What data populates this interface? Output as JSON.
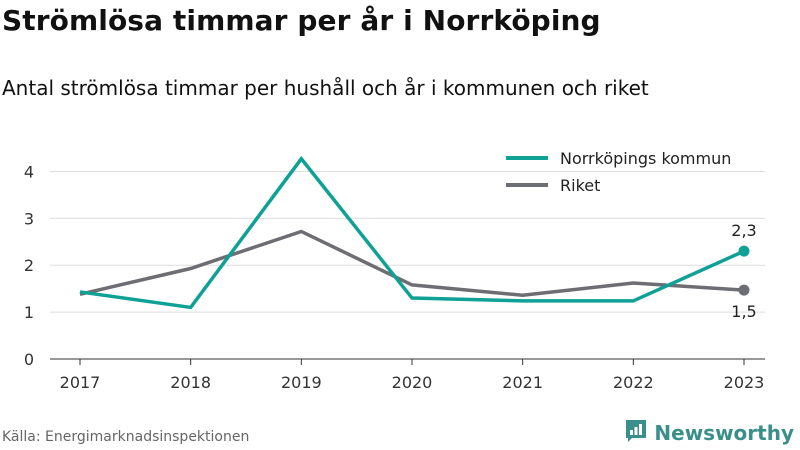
{
  "header": {
    "title": "Strömlösa timmar per år i Norrköping",
    "subtitle": "Antal strömlösa timmar per hushåll och år i kommunen och riket"
  },
  "footer": {
    "source": "Källa: Energimarknadsinspektionen",
    "brand": "Newsworthy",
    "brand_color": "#3a8f8a",
    "brand_icon": "newsworthy-logo-icon"
  },
  "chart_data": {
    "type": "line",
    "x": [
      2017,
      2018,
      2019,
      2020,
      2021,
      2022,
      2023
    ],
    "x_tick_labels": [
      "2017",
      "2018",
      "2019",
      "2020",
      "2021",
      "2022",
      "2023"
    ],
    "ylim": [
      0,
      4.5
    ],
    "y_ticks": [
      0,
      1,
      2,
      3,
      4
    ],
    "y_tick_labels": [
      "0",
      "1",
      "2",
      "3",
      "4"
    ],
    "grid": true,
    "legend_position": "top-right",
    "series": [
      {
        "name": "Norrköpings kommun",
        "color": "#0fa195",
        "values": [
          1.43,
          1.1,
          4.27,
          1.3,
          1.24,
          1.24,
          2.3
        ],
        "end_label": "2,3"
      },
      {
        "name": "Riket",
        "color": "#6d6d74",
        "values": [
          1.38,
          1.93,
          2.72,
          1.58,
          1.36,
          1.62,
          1.47
        ],
        "end_label": "1,5"
      }
    ]
  }
}
